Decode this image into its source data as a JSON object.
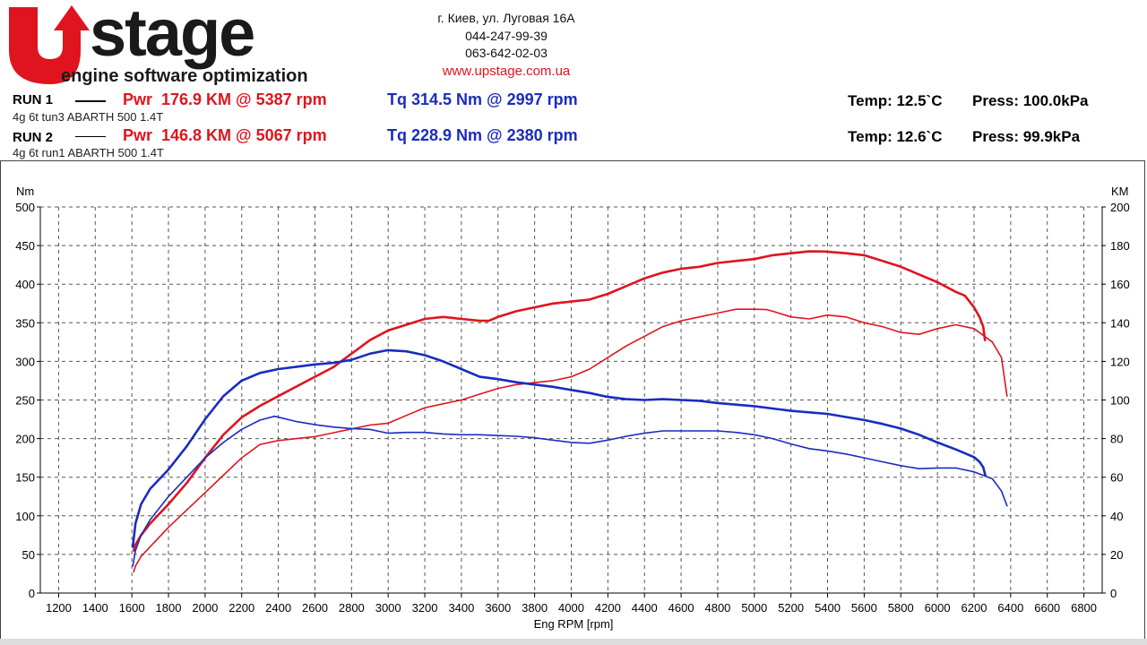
{
  "brand": {
    "name": "stage",
    "tagline": "engine software optimization",
    "colors": {
      "red": "#e0141e",
      "dark": "#1a1a1a"
    }
  },
  "contact": {
    "address": "г. Киев, ул. Луговая 16А",
    "phone1": "044-247-99-39",
    "phone2": "063-642-02-03",
    "website": "www.upstage.com.ua"
  },
  "runs": [
    {
      "label": "RUN 1",
      "desc": "4g 6t tun3 ABARTH 500 1.4T",
      "pwr": "Pwr  176.9 KM @ 5387 rpm",
      "tq": "Tq 314.5 Nm @ 2997 rpm",
      "temp": "Temp: 12.5`C",
      "press": "Press: 100.0kPa"
    },
    {
      "label": "RUN 2",
      "desc": "4g 6t run1 ABARTH 500 1.4T",
      "pwr": "Pwr  146.8 KM @ 5067 rpm",
      "tq": "Tq 228.9 Nm @ 2380 rpm",
      "temp": "Temp: 12.6`C",
      "press": "Press: 99.9kPa"
    }
  ],
  "chart_data": {
    "type": "line",
    "xlabel": "Eng RPM [rpm]",
    "ylabel_left": "Nm",
    "ylabel_right": "KM",
    "xlim": [
      1100,
      6900
    ],
    "x_ticks": [
      1200,
      1400,
      1600,
      1800,
      2000,
      2200,
      2400,
      2600,
      2800,
      3000,
      3200,
      3400,
      3600,
      3800,
      4000,
      4200,
      4400,
      4600,
      4800,
      5000,
      5200,
      5400,
      5600,
      5800,
      6000,
      6200,
      6400,
      6600,
      6800
    ],
    "ylim_left": [
      0,
      500
    ],
    "y_ticks_left": [
      0,
      50,
      100,
      150,
      200,
      250,
      300,
      350,
      400,
      450,
      500
    ],
    "ylim_right": [
      0,
      200
    ],
    "y_ticks_right": [
      0,
      20,
      40,
      60,
      80,
      100,
      120,
      140,
      160,
      180,
      200
    ],
    "grid": true,
    "colors": {
      "power": "#e0141e",
      "torque": "#1a2cc0"
    },
    "series": [
      {
        "axis": "right",
        "color": "#e0141e",
        "width": 2.6,
        "x": [
          1610,
          1620,
          1650,
          1700,
          1800,
          1900,
          2000,
          2100,
          2200,
          2300,
          2400,
          2500,
          2600,
          2700,
          2800,
          2900,
          3000,
          3100,
          3200,
          3300,
          3400,
          3500,
          3550,
          3600,
          3700,
          3800,
          3900,
          4000,
          4100,
          4200,
          4300,
          4400,
          4500,
          4600,
          4700,
          4800,
          4900,
          5000,
          5100,
          5200,
          5300,
          5387,
          5500,
          5600,
          5700,
          5800,
          5900,
          6000,
          6100,
          6150,
          6200,
          6230,
          6250,
          6260
        ],
        "y": [
          22,
          25,
          30,
          36,
          46,
          57,
          70,
          82,
          91,
          97,
          102,
          107,
          112,
          117,
          124,
          131,
          136,
          139,
          142,
          143,
          142,
          141,
          141,
          143,
          146,
          148,
          150,
          151,
          152,
          155,
          159,
          163,
          166,
          168,
          169,
          171,
          172,
          173,
          175,
          176,
          177,
          176.9,
          176,
          175,
          172,
          169,
          165,
          161,
          156,
          154,
          148,
          143,
          138,
          131
        ]
      },
      {
        "axis": "right",
        "color": "#e0141e",
        "width": 1.6,
        "x": [
          1610,
          1620,
          1650,
          1700,
          1800,
          1900,
          2000,
          2100,
          2200,
          2300,
          2400,
          2500,
          2600,
          2700,
          2800,
          2900,
          3000,
          3100,
          3200,
          3300,
          3400,
          3500,
          3600,
          3700,
          3800,
          3900,
          4000,
          4100,
          4200,
          4300,
          4400,
          4500,
          4600,
          4700,
          4800,
          4900,
          5000,
          5067,
          5100,
          5200,
          5300,
          5400,
          5500,
          5600,
          5700,
          5800,
          5900,
          6000,
          6100,
          6200,
          6300,
          6350,
          6380
        ],
        "y": [
          11,
          14,
          19,
          24,
          34,
          43,
          52,
          61,
          70,
          77,
          79,
          80,
          81,
          83,
          85,
          87,
          88,
          92,
          96,
          98,
          100,
          103,
          106,
          108,
          109,
          110,
          112,
          116,
          122,
          128,
          133,
          138,
          141,
          143,
          145,
          147,
          147,
          146.8,
          146,
          143,
          142,
          144,
          143,
          140,
          138,
          135,
          134,
          137,
          139,
          137,
          130,
          122,
          102
        ]
      },
      {
        "axis": "left",
        "color": "#1a2cc0",
        "width": 2.6,
        "x": [
          1605,
          1620,
          1650,
          1700,
          1800,
          1900,
          2000,
          2100,
          2200,
          2300,
          2400,
          2500,
          2600,
          2700,
          2800,
          2900,
          2997,
          3100,
          3200,
          3300,
          3400,
          3500,
          3600,
          3700,
          3800,
          3900,
          4000,
          4100,
          4200,
          4300,
          4400,
          4500,
          4600,
          4700,
          4800,
          4900,
          5000,
          5100,
          5200,
          5300,
          5400,
          5500,
          5600,
          5700,
          5800,
          5900,
          6000,
          6100,
          6200,
          6230,
          6250,
          6262
        ],
        "y": [
          60,
          90,
          115,
          135,
          160,
          190,
          225,
          255,
          275,
          285,
          290,
          293,
          296,
          298,
          302,
          310,
          314.5,
          313,
          308,
          300,
          290,
          280,
          277,
          273,
          270,
          267,
          263,
          259,
          254,
          251,
          250,
          251,
          250,
          249,
          246,
          244,
          242,
          239,
          236,
          234,
          232,
          228,
          224,
          219,
          213,
          205,
          195,
          186,
          176,
          170,
          163,
          152
        ]
      },
      {
        "axis": "left",
        "color": "#1a2cc0",
        "width": 1.6,
        "x": [
          1605,
          1620,
          1650,
          1700,
          1800,
          1900,
          2000,
          2100,
          2200,
          2300,
          2380,
          2500,
          2600,
          2700,
          2800,
          2900,
          3000,
          3100,
          3200,
          3300,
          3400,
          3500,
          3600,
          3700,
          3800,
          3900,
          4000,
          4100,
          4200,
          4300,
          4400,
          4500,
          4600,
          4700,
          4800,
          4900,
          5000,
          5100,
          5200,
          5300,
          5400,
          5500,
          5600,
          5700,
          5800,
          5900,
          6000,
          6100,
          6200,
          6300,
          6350,
          6380
        ],
        "y": [
          35,
          55,
          75,
          95,
          125,
          150,
          175,
          195,
          212,
          224,
          228.9,
          222,
          218,
          215,
          213,
          212,
          207,
          208,
          208,
          206,
          205,
          205,
          204,
          203,
          201,
          198,
          195,
          194,
          198,
          203,
          207,
          210,
          210,
          210,
          210,
          208,
          205,
          200,
          193,
          187,
          184,
          180,
          175,
          170,
          165,
          161,
          162,
          162,
          157,
          148,
          132,
          113
        ]
      }
    ]
  }
}
